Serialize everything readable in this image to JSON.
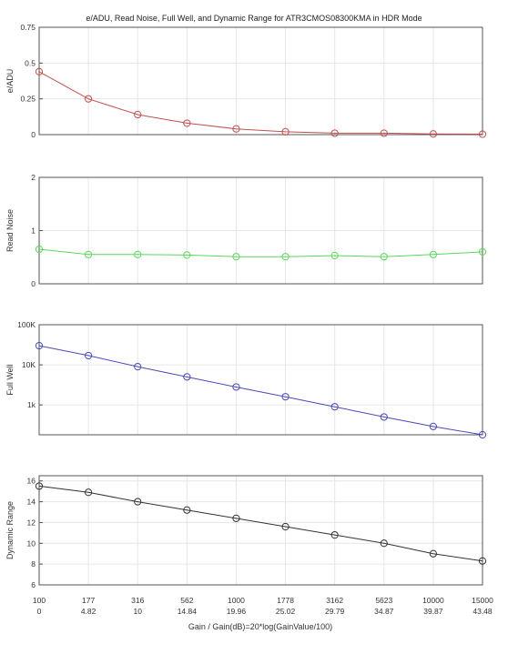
{
  "chart_data": {
    "type": "line",
    "title": "e/ADU, Read Noise, Full Well, and Dynamic Range for ATR3CMOS08300KMA in HDR Mode",
    "xlabel": "Gain / Gain(dB)=20*log(GainValue/100)",
    "x_gain_labels": [
      "100",
      "177",
      "316",
      "562",
      "1000",
      "1778",
      "3162",
      "5623",
      "10000",
      "15000"
    ],
    "x_db_labels": [
      "0",
      "4.82",
      "10",
      "14.84",
      "19.96",
      "25.02",
      "29.79",
      "34.87",
      "39.87",
      "43.48"
    ],
    "grid": true,
    "panels": [
      {
        "name": "eadu",
        "ylabel": "e/ADU",
        "color": "#c0504d",
        "scale": "linear",
        "ylim": [
          0,
          0.75
        ],
        "yticks": [
          0,
          0.25,
          0.5,
          0.75
        ],
        "ytick_labels": [
          "0",
          "0.25",
          "0.5",
          "0.75"
        ],
        "values": [
          0.44,
          0.25,
          0.14,
          0.08,
          0.04,
          0.02,
          0.01,
          0.01,
          0.005,
          0.003
        ]
      },
      {
        "name": "read-noise",
        "ylabel": "Read Noise",
        "color": "#5cd65c",
        "scale": "linear",
        "ylim": [
          0,
          2
        ],
        "yticks": [
          0,
          1,
          2
        ],
        "ytick_labels": [
          "0",
          "1",
          "2"
        ],
        "values": [
          0.65,
          0.55,
          0.55,
          0.54,
          0.51,
          0.51,
          0.53,
          0.51,
          0.55,
          0.6
        ]
      },
      {
        "name": "full-well",
        "ylabel": "Full Well",
        "color": "#4a4ab8",
        "scale": "log",
        "ylim": [
          180,
          100000
        ],
        "yticks": [
          1000,
          10000,
          100000
        ],
        "ytick_labels": [
          "1k",
          "10K",
          "100K"
        ],
        "values": [
          30000,
          17000,
          9000,
          5000,
          2800,
          1600,
          900,
          500,
          290,
          180
        ]
      },
      {
        "name": "dynamic-range",
        "ylabel": "Dynamic Range",
        "color": "#333333",
        "scale": "linear",
        "ylim": [
          6,
          16.5
        ],
        "yticks": [
          6,
          8,
          10,
          12,
          14,
          16
        ],
        "ytick_labels": [
          "6",
          "8",
          "10",
          "12",
          "14",
          "16"
        ],
        "values": [
          15.5,
          14.9,
          14.0,
          13.2,
          12.4,
          11.6,
          10.8,
          10.0,
          9.0,
          8.3
        ]
      }
    ]
  }
}
